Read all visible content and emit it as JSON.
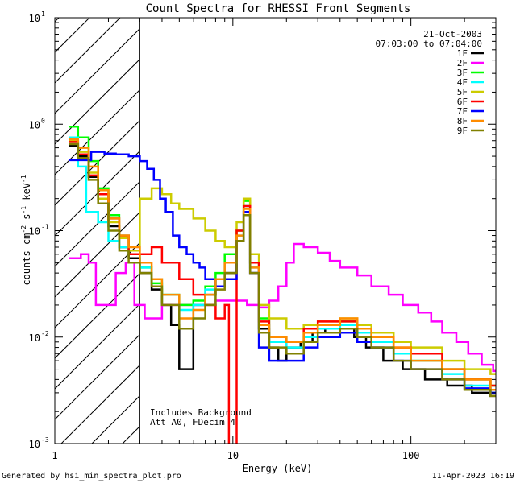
{
  "chart_data": {
    "type": "line",
    "title": "Count Spectra for RHESSI Front Segments",
    "xlabel": "Energy (keV)",
    "ylabel_parts": [
      "counts cm",
      "-2",
      " s",
      "-1",
      " keV",
      "-1"
    ],
    "xscale": "log",
    "yscale": "log",
    "xlim": [
      1,
      300
    ],
    "ylim": [
      0.001,
      10
    ],
    "x_ticks": [
      {
        "value": 1,
        "label": "1"
      },
      {
        "value": 10,
        "label": "10"
      },
      {
        "value": 100,
        "label": "100"
      }
    ],
    "y_ticks": [
      {
        "value": 0.001,
        "base": "10",
        "exp": "-3"
      },
      {
        "value": 0.01,
        "base": "10",
        "exp": "-2"
      },
      {
        "value": 0.1,
        "base": "10",
        "exp": "-1"
      },
      {
        "value": 1,
        "base": "10",
        "exp": "0"
      },
      {
        "value": 10,
        "base": "10",
        "exp": "1"
      }
    ],
    "hatched_region": {
      "x_start": 1,
      "x_end": 3
    },
    "header": {
      "date": "21-Oct-2003",
      "time_range": "07:03:00 to 07:04:00"
    },
    "annotations": [
      "Includes Background",
      "Att A0, FDecim 4"
    ],
    "series": [
      {
        "name": "1F",
        "color": "#000000",
        "points": [
          [
            1.2,
            0.63
          ],
          [
            1.35,
            0.5
          ],
          [
            1.55,
            0.32
          ],
          [
            1.75,
            0.2
          ],
          [
            2.0,
            0.11
          ],
          [
            2.3,
            0.07
          ],
          [
            2.6,
            0.055
          ],
          [
            3.0,
            0.04
          ],
          [
            3.5,
            0.028
          ],
          [
            4.0,
            0.02
          ],
          [
            4.5,
            0.013
          ],
          [
            5.0,
            0.005
          ],
          [
            6.0,
            0.02
          ],
          [
            7.0,
            0.025
          ],
          [
            8.0,
            0.03
          ],
          [
            9.0,
            0.04
          ],
          [
            10.5,
            0.08
          ],
          [
            11.5,
            0.15
          ],
          [
            12.5,
            0.04
          ],
          [
            14,
            0.012
          ],
          [
            16,
            0.008
          ],
          [
            18,
            0.006
          ],
          [
            20,
            0.008
          ],
          [
            24,
            0.009
          ],
          [
            28,
            0.011
          ],
          [
            33,
            0.012
          ],
          [
            40,
            0.012
          ],
          [
            48,
            0.01
          ],
          [
            56,
            0.008
          ],
          [
            70,
            0.006
          ],
          [
            90,
            0.005
          ],
          [
            120,
            0.004
          ],
          [
            160,
            0.0035
          ],
          [
            220,
            0.003
          ],
          [
            280,
            0.0028
          ]
        ]
      },
      {
        "name": "2F",
        "color": "#ff00ff",
        "points": [
          [
            1.2,
            0.055
          ],
          [
            1.4,
            0.06
          ],
          [
            1.55,
            0.05
          ],
          [
            1.7,
            0.02
          ],
          [
            2.0,
            0.02
          ],
          [
            2.2,
            0.04
          ],
          [
            2.5,
            0.05
          ],
          [
            2.8,
            0.02
          ],
          [
            3.2,
            0.015
          ],
          [
            4.0,
            0.02
          ],
          [
            5.0,
            0.02
          ],
          [
            6.5,
            0.02
          ],
          [
            8.0,
            0.022
          ],
          [
            10,
            0.022
          ],
          [
            12,
            0.02
          ],
          [
            14,
            0.019
          ],
          [
            16,
            0.022
          ],
          [
            18,
            0.03
          ],
          [
            20,
            0.05
          ],
          [
            22,
            0.075
          ],
          [
            25,
            0.07
          ],
          [
            30,
            0.062
          ],
          [
            35,
            0.052
          ],
          [
            40,
            0.045
          ],
          [
            50,
            0.038
          ],
          [
            60,
            0.03
          ],
          [
            75,
            0.025
          ],
          [
            90,
            0.02
          ],
          [
            110,
            0.017
          ],
          [
            130,
            0.014
          ],
          [
            150,
            0.011
          ],
          [
            180,
            0.009
          ],
          [
            210,
            0.007
          ],
          [
            250,
            0.0055
          ],
          [
            290,
            0.0048
          ]
        ]
      },
      {
        "name": "3F",
        "color": "#00ff00",
        "points": [
          [
            1.2,
            0.95
          ],
          [
            1.35,
            0.75
          ],
          [
            1.55,
            0.45
          ],
          [
            1.75,
            0.25
          ],
          [
            2.0,
            0.14
          ],
          [
            2.3,
            0.09
          ],
          [
            2.6,
            0.06
          ],
          [
            3.0,
            0.045
          ],
          [
            3.5,
            0.032
          ],
          [
            4.0,
            0.025
          ],
          [
            5.0,
            0.02
          ],
          [
            6.0,
            0.022
          ],
          [
            7.0,
            0.03
          ],
          [
            8.0,
            0.04
          ],
          [
            9.0,
            0.06
          ],
          [
            10.5,
            0.1
          ],
          [
            11.5,
            0.19
          ],
          [
            12.5,
            0.05
          ],
          [
            14,
            0.015
          ],
          [
            16,
            0.01
          ],
          [
            20,
            0.009
          ],
          [
            25,
            0.011
          ],
          [
            30,
            0.013
          ],
          [
            40,
            0.014
          ],
          [
            50,
            0.012
          ],
          [
            60,
            0.01
          ],
          [
            80,
            0.007
          ],
          [
            100,
            0.006
          ],
          [
            150,
            0.005
          ],
          [
            200,
            0.004
          ],
          [
            280,
            0.0035
          ]
        ]
      },
      {
        "name": "4F",
        "color": "#00ffff",
        "points": [
          [
            1.2,
            0.75
          ],
          [
            1.35,
            0.4
          ],
          [
            1.5,
            0.15
          ],
          [
            1.75,
            0.12
          ],
          [
            2.0,
            0.08
          ],
          [
            2.3,
            0.07
          ],
          [
            2.6,
            0.06
          ],
          [
            3.0,
            0.045
          ],
          [
            3.5,
            0.035
          ],
          [
            4.0,
            0.025
          ],
          [
            5.0,
            0.018
          ],
          [
            6.0,
            0.02
          ],
          [
            7.0,
            0.028
          ],
          [
            8.0,
            0.035
          ],
          [
            9.0,
            0.05
          ],
          [
            10.5,
            0.09
          ],
          [
            11.5,
            0.17
          ],
          [
            12.5,
            0.045
          ],
          [
            14,
            0.013
          ],
          [
            16,
            0.009
          ],
          [
            20,
            0.008
          ],
          [
            25,
            0.01
          ],
          [
            30,
            0.012
          ],
          [
            40,
            0.013
          ],
          [
            50,
            0.011
          ],
          [
            60,
            0.009
          ],
          [
            80,
            0.007
          ],
          [
            100,
            0.006
          ],
          [
            150,
            0.0045
          ],
          [
            200,
            0.0035
          ],
          [
            280,
            0.003
          ]
        ]
      },
      {
        "name": "5F",
        "color": "#cccc00",
        "points": [
          [
            1.2,
            0.7
          ],
          [
            1.35,
            0.55
          ],
          [
            1.55,
            0.35
          ],
          [
            1.75,
            0.2
          ],
          [
            2.0,
            0.12
          ],
          [
            2.3,
            0.085
          ],
          [
            2.6,
            0.065
          ],
          [
            3.0,
            0.2
          ],
          [
            3.5,
            0.25
          ],
          [
            4.0,
            0.22
          ],
          [
            4.5,
            0.18
          ],
          [
            5.0,
            0.16
          ],
          [
            6.0,
            0.13
          ],
          [
            7.0,
            0.1
          ],
          [
            8.0,
            0.08
          ],
          [
            9.0,
            0.07
          ],
          [
            10.5,
            0.12
          ],
          [
            11.5,
            0.2
          ],
          [
            12.5,
            0.06
          ],
          [
            14,
            0.02
          ],
          [
            16,
            0.015
          ],
          [
            20,
            0.012
          ],
          [
            25,
            0.013
          ],
          [
            30,
            0.014
          ],
          [
            40,
            0.015
          ],
          [
            50,
            0.013
          ],
          [
            60,
            0.011
          ],
          [
            80,
            0.009
          ],
          [
            100,
            0.008
          ],
          [
            150,
            0.006
          ],
          [
            200,
            0.005
          ],
          [
            280,
            0.0045
          ]
        ]
      },
      {
        "name": "6F",
        "color": "#ff0000",
        "points": [
          [
            1.2,
            0.68
          ],
          [
            1.35,
            0.52
          ],
          [
            1.55,
            0.33
          ],
          [
            1.75,
            0.22
          ],
          [
            2.0,
            0.13
          ],
          [
            2.3,
            0.09
          ],
          [
            2.6,
            0.06
          ],
          [
            3.0,
            0.06
          ],
          [
            3.5,
            0.07
          ],
          [
            4.0,
            0.05
          ],
          [
            5.0,
            0.035
          ],
          [
            6.0,
            0.025
          ],
          [
            7.0,
            0.02
          ],
          [
            8.0,
            0.015
          ],
          [
            9.0,
            0.02
          ],
          [
            9.5,
            0.0008
          ],
          [
            10.5,
            0.1
          ],
          [
            11.5,
            0.17
          ],
          [
            12.5,
            0.05
          ],
          [
            14,
            0.014
          ],
          [
            16,
            0.01
          ],
          [
            20,
            0.009
          ],
          [
            25,
            0.012
          ],
          [
            30,
            0.014
          ],
          [
            40,
            0.014
          ],
          [
            50,
            0.012
          ],
          [
            60,
            0.01
          ],
          [
            80,
            0.008
          ],
          [
            100,
            0.007
          ],
          [
            150,
            0.005
          ],
          [
            200,
            0.004
          ],
          [
            280,
            0.0035
          ]
        ]
      },
      {
        "name": "7F",
        "color": "#0000ff",
        "points": [
          [
            1.2,
            0.46
          ],
          [
            1.4,
            0.46
          ],
          [
            1.6,
            0.55
          ],
          [
            1.9,
            0.53
          ],
          [
            2.2,
            0.52
          ],
          [
            2.6,
            0.5
          ],
          [
            3.0,
            0.45
          ],
          [
            3.3,
            0.38
          ],
          [
            3.6,
            0.3
          ],
          [
            3.9,
            0.2
          ],
          [
            4.2,
            0.15
          ],
          [
            4.6,
            0.09
          ],
          [
            5.0,
            0.07
          ],
          [
            5.5,
            0.06
          ],
          [
            6.0,
            0.05
          ],
          [
            6.5,
            0.045
          ],
          [
            7.0,
            0.035
          ],
          [
            8.0,
            0.03
          ],
          [
            9.0,
            0.035
          ],
          [
            10.5,
            0.08
          ],
          [
            11.5,
            0.15
          ],
          [
            12.5,
            0.04
          ],
          [
            14,
            0.008
          ],
          [
            16,
            0.006
          ],
          [
            20,
            0.006
          ],
          [
            25,
            0.008
          ],
          [
            30,
            0.01
          ],
          [
            40,
            0.011
          ],
          [
            50,
            0.009
          ],
          [
            60,
            0.008
          ],
          [
            80,
            0.006
          ],
          [
            100,
            0.005
          ],
          [
            150,
            0.004
          ],
          [
            200,
            0.0033
          ],
          [
            280,
            0.003
          ]
        ]
      },
      {
        "name": "8F",
        "color": "#ff8c00",
        "points": [
          [
            1.2,
            0.72
          ],
          [
            1.35,
            0.6
          ],
          [
            1.55,
            0.4
          ],
          [
            1.75,
            0.24
          ],
          [
            2.0,
            0.13
          ],
          [
            2.3,
            0.09
          ],
          [
            2.6,
            0.07
          ],
          [
            3.0,
            0.05
          ],
          [
            3.5,
            0.035
          ],
          [
            4.0,
            0.025
          ],
          [
            5.0,
            0.015
          ],
          [
            6.0,
            0.018
          ],
          [
            7.0,
            0.025
          ],
          [
            8.0,
            0.035
          ],
          [
            9.0,
            0.05
          ],
          [
            10.5,
            0.09
          ],
          [
            11.5,
            0.16
          ],
          [
            12.5,
            0.045
          ],
          [
            14,
            0.013
          ],
          [
            16,
            0.01
          ],
          [
            20,
            0.009
          ],
          [
            25,
            0.011
          ],
          [
            30,
            0.013
          ],
          [
            40,
            0.015
          ],
          [
            50,
            0.012
          ],
          [
            60,
            0.01
          ],
          [
            80,
            0.008
          ],
          [
            100,
            0.006
          ],
          [
            150,
            0.005
          ],
          [
            200,
            0.004
          ],
          [
            280,
            0.0032
          ]
        ]
      },
      {
        "name": "9F",
        "color": "#808000",
        "points": [
          [
            1.2,
            0.65
          ],
          [
            1.35,
            0.48
          ],
          [
            1.55,
            0.3
          ],
          [
            1.75,
            0.18
          ],
          [
            2.0,
            0.1
          ],
          [
            2.3,
            0.065
          ],
          [
            2.6,
            0.05
          ],
          [
            3.0,
            0.04
          ],
          [
            3.5,
            0.03
          ],
          [
            4.0,
            0.02
          ],
          [
            5.0,
            0.012
          ],
          [
            6.0,
            0.015
          ],
          [
            7.0,
            0.02
          ],
          [
            8.0,
            0.028
          ],
          [
            9.0,
            0.04
          ],
          [
            10.5,
            0.08
          ],
          [
            11.5,
            0.14
          ],
          [
            12.5,
            0.04
          ],
          [
            14,
            0.011
          ],
          [
            16,
            0.008
          ],
          [
            20,
            0.007
          ],
          [
            25,
            0.009
          ],
          [
            30,
            0.011
          ],
          [
            40,
            0.012
          ],
          [
            50,
            0.01
          ],
          [
            60,
            0.008
          ],
          [
            80,
            0.006
          ],
          [
            100,
            0.005
          ],
          [
            150,
            0.004
          ],
          [
            200,
            0.0032
          ],
          [
            280,
            0.0028
          ]
        ]
      }
    ]
  },
  "footer": {
    "left": "Generated by hsi_min_spectra_plot.pro",
    "right": "11-Apr-2023 16:19"
  }
}
